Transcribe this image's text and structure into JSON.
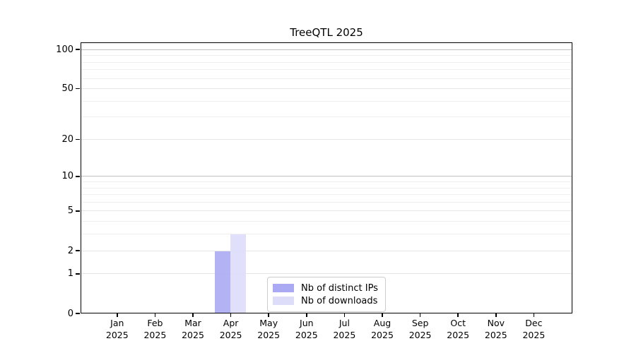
{
  "chart_data": {
    "type": "bar",
    "title": "TreeQTL 2025",
    "categories": [
      "Jan",
      "Feb",
      "Mar",
      "Apr",
      "May",
      "Jun",
      "Jul",
      "Aug",
      "Sep",
      "Oct",
      "Nov",
      "Dec"
    ],
    "category_year": "2025",
    "series": [
      {
        "name": "Nb of distinct IPs",
        "color": "#aaaaf4",
        "values": [
          0,
          0,
          0,
          2,
          0,
          0,
          0,
          0,
          0,
          0,
          0,
          0
        ]
      },
      {
        "name": "Nb of downloads",
        "color": "#ddddfa",
        "values": [
          0,
          0,
          0,
          3,
          0,
          0,
          0,
          0,
          0,
          0,
          0,
          0
        ]
      }
    ],
    "xlabel": "",
    "ylabel": "",
    "y_axis": {
      "scale": "log10(1+value)",
      "major_ticks": [
        0,
        1,
        2,
        5,
        10,
        20,
        50,
        100
      ],
      "minor_gridlines": [
        3,
        4,
        6,
        7,
        8,
        9,
        30,
        40,
        60,
        70,
        80,
        90
      ],
      "ylim": [
        0,
        113
      ]
    },
    "grid": "horizontal",
    "legend_position": "bottom-center",
    "colors": {
      "background": "#ffffff",
      "spine": "#000000",
      "text": "#000000",
      "grid_decade": "#c0c0c0",
      "grid_regular": "#e6e6e6",
      "grid_minor": "#efefef"
    }
  }
}
